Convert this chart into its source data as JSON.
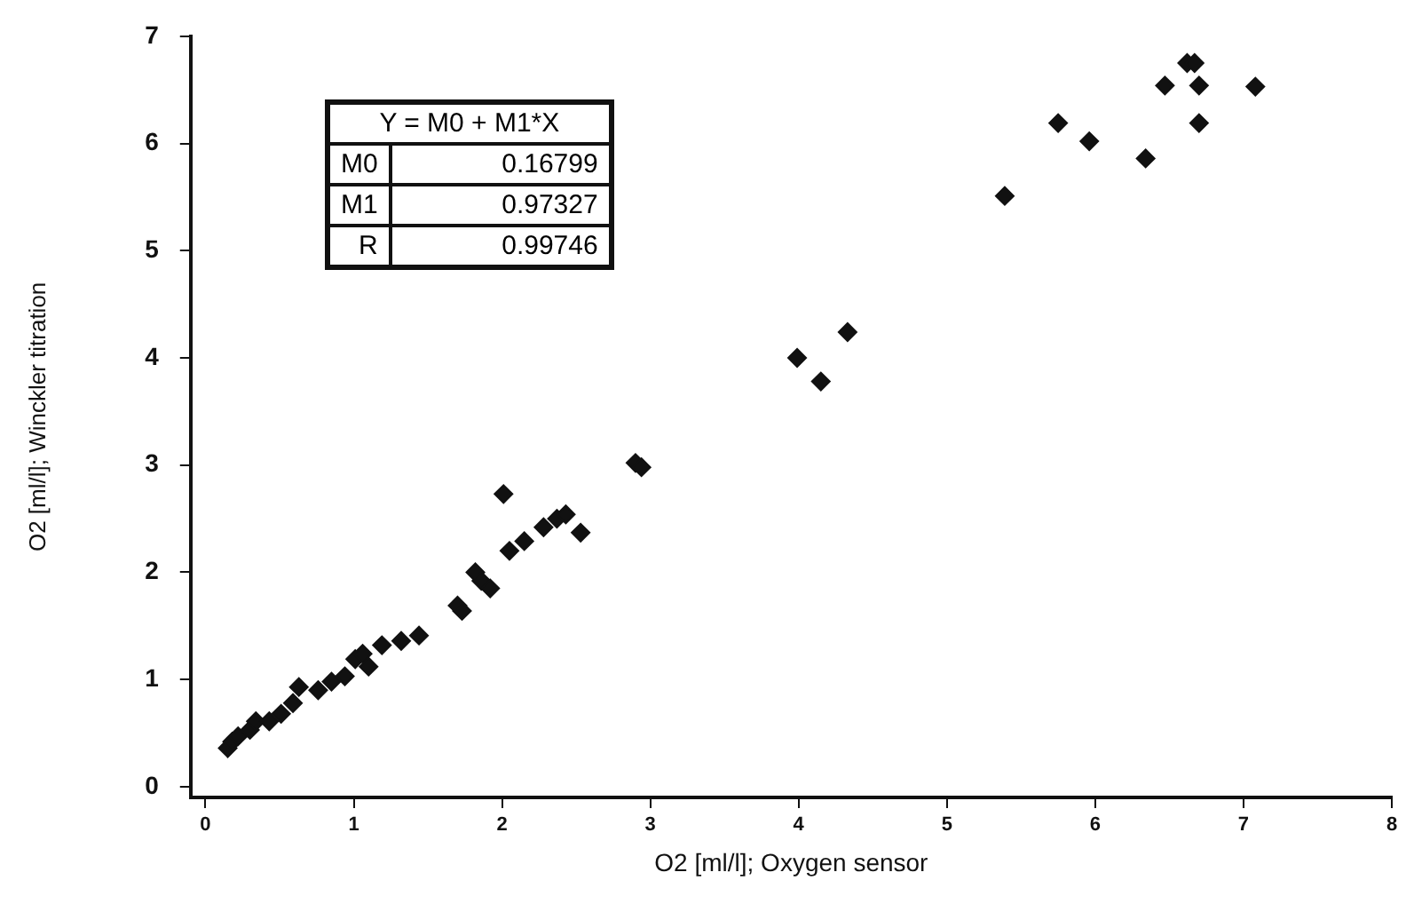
{
  "chart_data": {
    "type": "scatter",
    "xlabel": "O2 [ml/l]; Oxygen sensor",
    "ylabel": "O2 [ml/l]; Winckler titration",
    "x": [
      0.15,
      0.18,
      0.22,
      0.3,
      0.34,
      0.43,
      0.51,
      0.59,
      0.63,
      0.76,
      0.85,
      0.94,
      1.01,
      1.06,
      1.1,
      1.19,
      1.32,
      1.44,
      1.7,
      1.73,
      1.82,
      1.86,
      1.92,
      2.01,
      2.05,
      2.15,
      2.28,
      2.37,
      2.43,
      2.53,
      2.9,
      2.94,
      3.99,
      4.15,
      4.33,
      5.39,
      5.75,
      5.96,
      6.34,
      6.47,
      6.62,
      6.67,
      6.7,
      6.7,
      7.08
    ],
    "series": [
      {
        "color": "#111111",
        "values": [
          0.36,
          0.42,
          0.47,
          0.53,
          0.61,
          0.61,
          0.68,
          0.78,
          0.93,
          0.9,
          0.98,
          1.03,
          1.19,
          1.24,
          1.12,
          1.32,
          1.36,
          1.41,
          1.69,
          1.64,
          2.0,
          1.92,
          1.85,
          2.73,
          2.2,
          2.29,
          2.42,
          2.5,
          2.54,
          2.37,
          3.02,
          2.98,
          4.0,
          3.78,
          4.24,
          5.51,
          6.19,
          6.02,
          5.86,
          6.54,
          6.75,
          6.75,
          6.54,
          6.19,
          6.53
        ]
      }
    ],
    "xlim": [
      -0.1,
      8
    ],
    "ylim": [
      -0.1,
      7
    ],
    "xticks": [
      0,
      1,
      2,
      3,
      4,
      5,
      6,
      7,
      8
    ],
    "yticks": [
      0,
      1,
      2,
      3,
      4,
      5,
      6,
      7
    ],
    "marker": "diamond",
    "grid": false,
    "legend": false,
    "annotations": [
      "Y = M0 + M1*X",
      "M0",
      "0.16799",
      "M1",
      "0.97327",
      "R",
      "0.99746"
    ]
  }
}
